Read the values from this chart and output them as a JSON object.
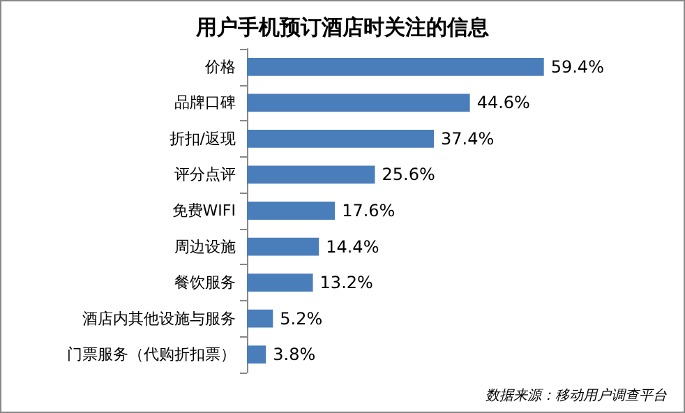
{
  "chart_data": {
    "type": "bar",
    "orientation": "horizontal",
    "title": "用户手机预订酒店时关注的信息",
    "categories": [
      "价格",
      "品牌口碑",
      "折扣/返现",
      "评分点评",
      "免费WIFI",
      "周边设施",
      "餐饮服务",
      "酒店内其他设施与服务",
      "门票服务（代购折扣票）"
    ],
    "values": [
      59.4,
      44.6,
      37.4,
      25.6,
      17.6,
      14.4,
      13.2,
      5.2,
      3.8
    ],
    "value_labels": [
      "59.4%",
      "44.6%",
      "37.4%",
      "25.6%",
      "17.6%",
      "14.4%",
      "13.2%",
      "5.2%",
      "3.8%"
    ],
    "color": "#4a7ebb",
    "annotations": [
      "数据来源：移动用户调查平台"
    ]
  }
}
